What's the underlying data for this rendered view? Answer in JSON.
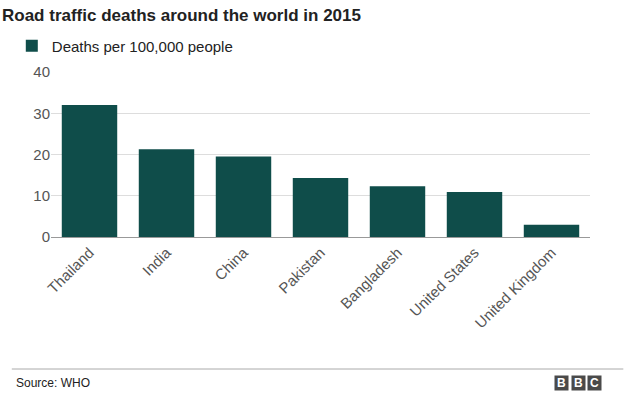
{
  "chart_data": {
    "type": "bar",
    "title": "Road traffic deaths around the world in 2015",
    "categories": [
      "Thailand",
      "India",
      "China",
      "Pakistan",
      "Bangladesh",
      "United States",
      "United Kingdom"
    ],
    "series": [
      {
        "name": "Deaths per 100,000 people",
        "color": "#0f4d4a",
        "values": [
          32,
          21.3,
          19.5,
          14.3,
          12.3,
          10.9,
          3
        ]
      }
    ],
    "ylim": [
      0,
      40
    ],
    "yticks": [
      0,
      10,
      20,
      30,
      40
    ],
    "grid": true,
    "legend": "top left",
    "source": "Source: WHO",
    "logo": "BBC"
  }
}
